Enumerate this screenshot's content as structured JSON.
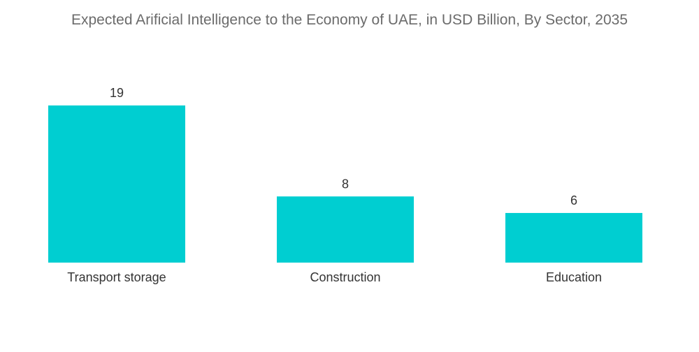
{
  "chart_data": {
    "type": "bar",
    "title": "Expected Arificial Intelligence to the Economy of UAE, in USD Billion, By Sector, 2035",
    "categories": [
      "Transport storage",
      "Construction",
      "Education"
    ],
    "values": [
      19,
      8,
      6
    ],
    "xlabel": "",
    "ylabel": "",
    "ylim": [
      0,
      19
    ],
    "grid": false,
    "legend": "none",
    "bar_color": "#00ced1"
  }
}
